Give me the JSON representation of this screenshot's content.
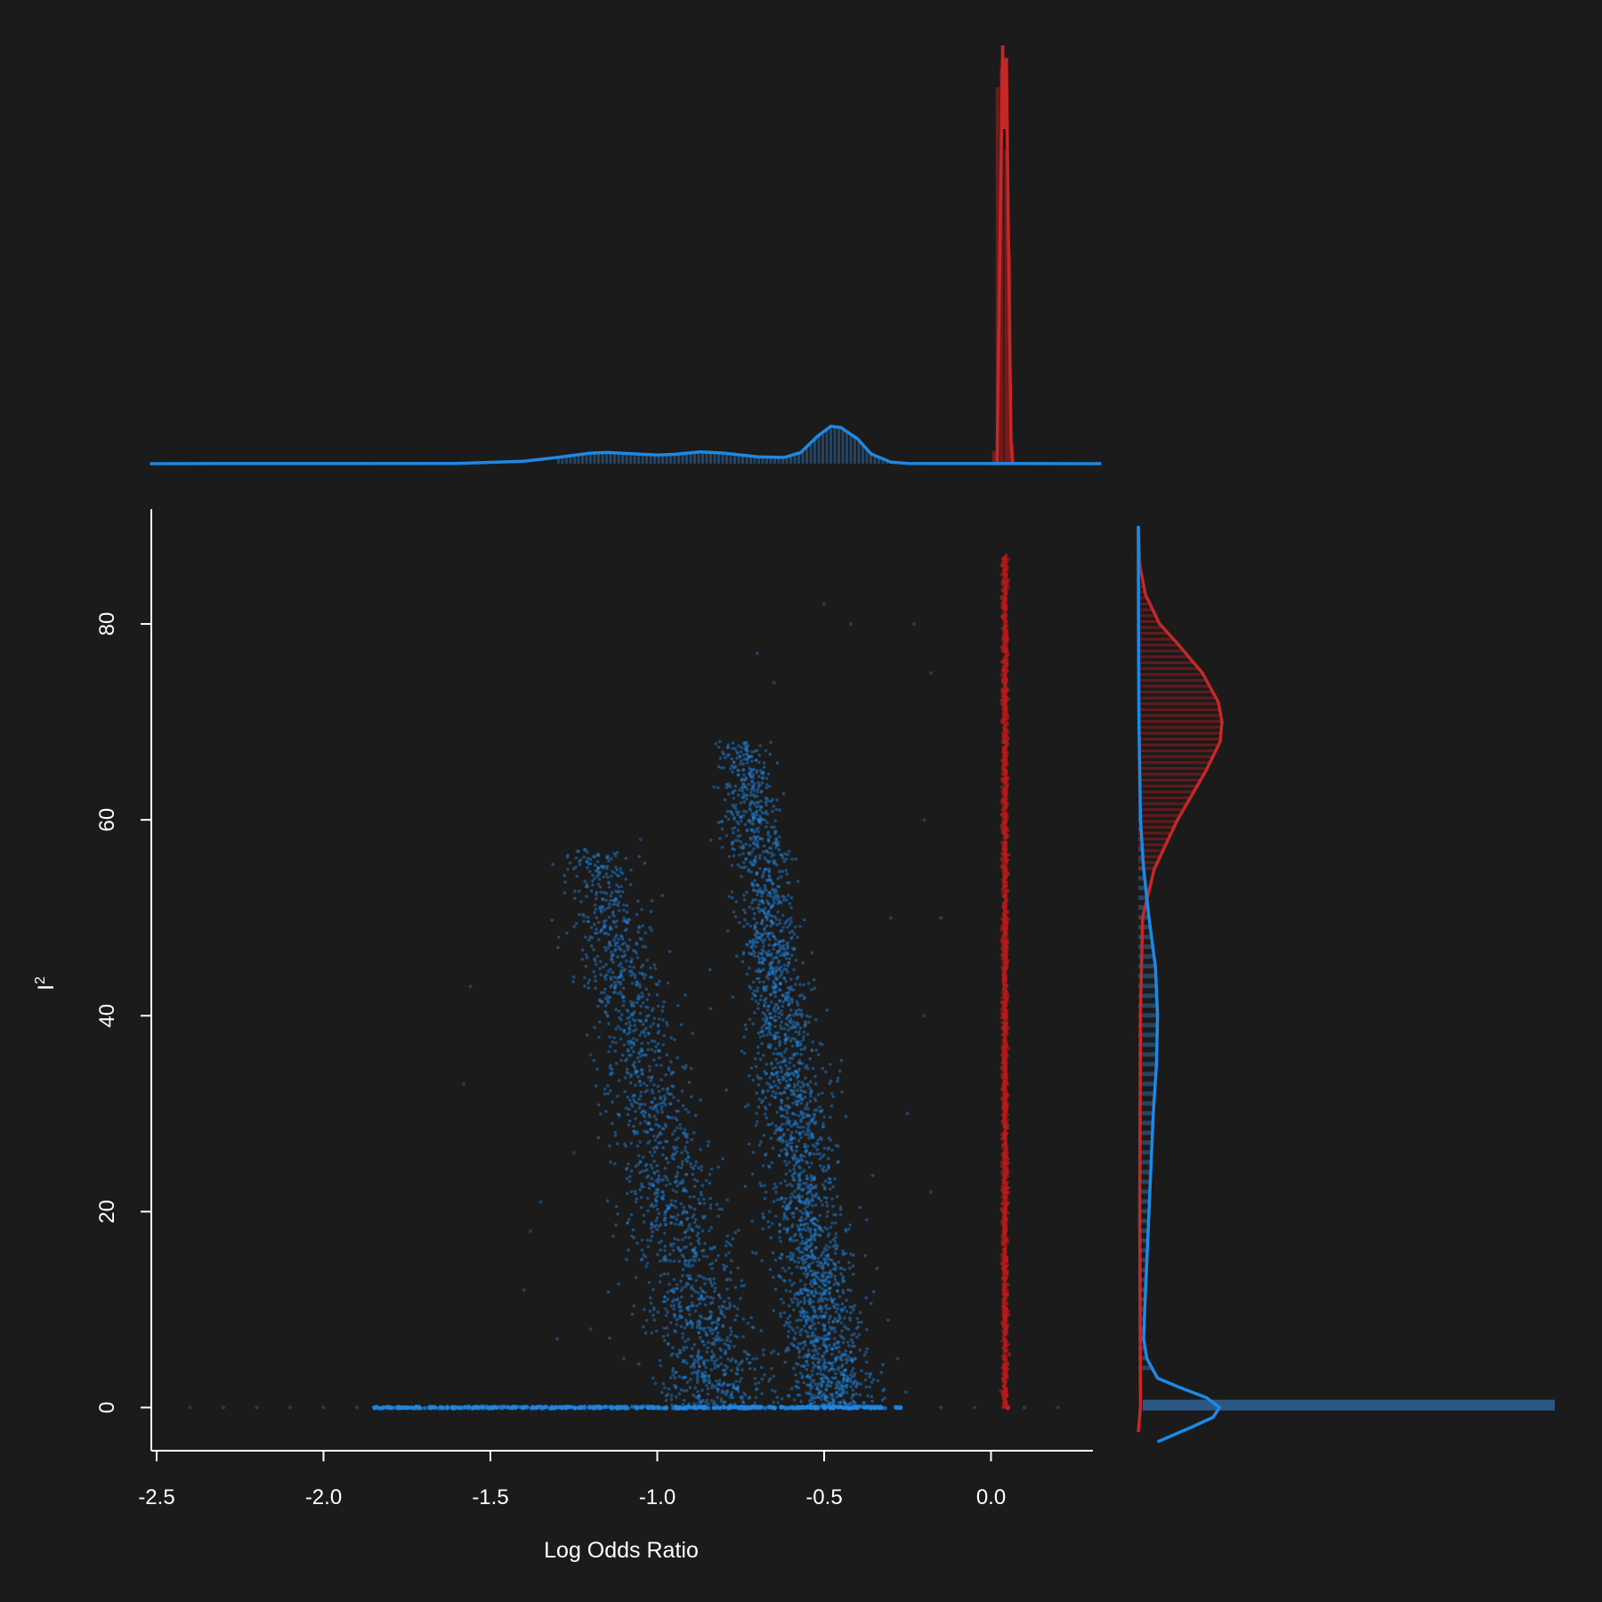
{
  "chart_data": {
    "type": "scatter",
    "title": "",
    "xlabel": "Log Odds Ratio",
    "ylabel": "I",
    "ylabel_superscript": "2",
    "xlim": [
      -2.5,
      0.3
    ],
    "ylim": [
      -3.5,
      91
    ],
    "x_ticks": [
      -2.5,
      -2.0,
      -1.5,
      -1.0,
      -0.5,
      0.0
    ],
    "x_tick_labels": [
      "-2.5",
      "-2.0",
      "-1.5",
      "-1.0",
      "-0.5",
      "0.0"
    ],
    "y_ticks": [
      0,
      20,
      40,
      60,
      80
    ],
    "y_tick_labels": [
      "0",
      "20",
      "40",
      "60",
      "80"
    ],
    "grid": false,
    "colors": {
      "background": "#1b1b1b",
      "axis": "#ffffff",
      "series_blue": "#1e88e5",
      "series_red": "#b71c1c",
      "series_red_line": "#c62828"
    },
    "series": [
      {
        "name": "blue",
        "color": "#1e88e5",
        "clusters": [
          {
            "x_center": -0.47,
            "x_slope": -0.004,
            "x_sd": 0.065,
            "y_min": 0,
            "y_max": 68,
            "count": 2600
          },
          {
            "x_center": -0.82,
            "x_slope": -0.0065,
            "x_sd": 0.085,
            "y_min": 0,
            "y_max": 57,
            "count": 1700
          }
        ],
        "baseline": {
          "y": 0,
          "x_min": -1.85,
          "x_max": -0.27
        },
        "sparse_outliers": [
          {
            "x": -2.4,
            "y": 0
          },
          {
            "x": -2.3,
            "y": 0
          },
          {
            "x": -2.2,
            "y": 0
          },
          {
            "x": -2.1,
            "y": 0
          },
          {
            "x": -2.0,
            "y": 0
          },
          {
            "x": -1.9,
            "y": 0
          },
          {
            "x": -0.15,
            "y": 0
          },
          {
            "x": -0.05,
            "y": 0
          },
          {
            "x": 0.1,
            "y": 0
          },
          {
            "x": 0.2,
            "y": 0
          },
          {
            "x": -1.56,
            "y": 43
          },
          {
            "x": -1.58,
            "y": 33
          },
          {
            "x": -1.35,
            "y": 21
          },
          {
            "x": -1.4,
            "y": 12
          },
          {
            "x": -1.3,
            "y": 7
          },
          {
            "x": -1.38,
            "y": 18
          },
          {
            "x": -0.5,
            "y": 82
          },
          {
            "x": -0.42,
            "y": 80
          },
          {
            "x": -0.23,
            "y": 80
          },
          {
            "x": -0.18,
            "y": 75
          },
          {
            "x": -0.7,
            "y": 77
          },
          {
            "x": -0.65,
            "y": 74
          },
          {
            "x": -0.2,
            "y": 60
          },
          {
            "x": -0.15,
            "y": 50
          },
          {
            "x": -0.2,
            "y": 40
          },
          {
            "x": -0.3,
            "y": 50
          },
          {
            "x": -0.25,
            "y": 30
          },
          {
            "x": -0.18,
            "y": 22
          },
          {
            "x": -1.05,
            "y": 58
          },
          {
            "x": -1.1,
            "y": 50
          },
          {
            "x": -1.15,
            "y": 42
          },
          {
            "x": -1.2,
            "y": 36
          },
          {
            "x": -1.25,
            "y": 26
          },
          {
            "x": -1.1,
            "y": 5
          },
          {
            "x": -1.2,
            "y": 8
          },
          {
            "x": -0.28,
            "y": 5
          }
        ],
        "marginal_x_density": {
          "points": [
            [
              -2.52,
              0
            ],
            [
              -1.6,
              0.002
            ],
            [
              -1.4,
              0.02
            ],
            [
              -1.3,
              0.05
            ],
            [
              -1.2,
              0.085
            ],
            [
              -1.15,
              0.09
            ],
            [
              -1.08,
              0.08
            ],
            [
              -1.0,
              0.07
            ],
            [
              -0.95,
              0.075
            ],
            [
              -0.87,
              0.095
            ],
            [
              -0.8,
              0.085
            ],
            [
              -0.7,
              0.055
            ],
            [
              -0.62,
              0.05
            ],
            [
              -0.57,
              0.09
            ],
            [
              -0.52,
              0.22
            ],
            [
              -0.48,
              0.3
            ],
            [
              -0.45,
              0.29
            ],
            [
              -0.4,
              0.2
            ],
            [
              -0.36,
              0.08
            ],
            [
              -0.3,
              0.012
            ],
            [
              -0.25,
              0.002
            ],
            [
              0.33,
              0
            ]
          ],
          "hist_x_range": [
            -1.3,
            -0.3
          ]
        },
        "marginal_y_density": {
          "points": [
            [
              -3.5,
              0.09
            ],
            [
              -2,
              0.25
            ],
            [
              -1,
              0.35
            ],
            [
              0,
              0.38
            ],
            [
              1,
              0.32
            ],
            [
              2,
              0.2
            ],
            [
              3,
              0.09
            ],
            [
              5,
              0.04
            ],
            [
              7,
              0.025
            ],
            [
              10,
              0.03
            ],
            [
              15,
              0.04
            ],
            [
              20,
              0.05
            ],
            [
              25,
              0.06
            ],
            [
              30,
              0.07
            ],
            [
              35,
              0.085
            ],
            [
              40,
              0.09
            ],
            [
              45,
              0.08
            ],
            [
              50,
              0.05
            ],
            [
              55,
              0.025
            ],
            [
              60,
              0.01
            ],
            [
              70,
              0.003
            ],
            [
              80,
              0.001
            ],
            [
              90,
              0
            ]
          ],
          "hist_y_range": [
            4,
            60
          ],
          "zero_bar_length": 1.0
        }
      },
      {
        "name": "red",
        "color": "#b71c1c",
        "column": {
          "x_center": 0.042,
          "x_sd": 0.004,
          "y_min": 0,
          "y_max": 87,
          "count": 2200
        },
        "marginal_x_density": {
          "points": [
            [
              0.0,
              0
            ],
            [
              0.018,
              0
            ],
            [
              0.028,
              0.6
            ],
            [
              0.035,
              1.0
            ],
            [
              0.04,
              0.8
            ],
            [
              0.046,
              0.97
            ],
            [
              0.052,
              0.55
            ],
            [
              0.06,
              0.05
            ],
            [
              0.065,
              0
            ]
          ],
          "hist_bars": [
            [
              0.003,
              0.03
            ],
            [
              0.014,
              0.9
            ],
            [
              0.026,
              0.95
            ],
            [
              0.04,
              0.75
            ],
            [
              0.05,
              0.5
            ],
            [
              0.058,
              0.05
            ]
          ]
        },
        "marginal_y_density": {
          "points": [
            [
              -2.5,
              0
            ],
            [
              0,
              0.006
            ],
            [
              10,
              0.005
            ],
            [
              20,
              0.004
            ],
            [
              30,
              0.005
            ],
            [
              40,
              0.006
            ],
            [
              50,
              0.012
            ],
            [
              55,
              0.045
            ],
            [
              60,
              0.11
            ],
            [
              65,
              0.19
            ],
            [
              68,
              0.23
            ],
            [
              70,
              0.235
            ],
            [
              72,
              0.225
            ],
            [
              75,
              0.18
            ],
            [
              78,
              0.11
            ],
            [
              80,
              0.06
            ],
            [
              83,
              0.02
            ],
            [
              86,
              0.004
            ],
            [
              90,
              0
            ]
          ],
          "hist_y_range": [
            55,
            84
          ]
        }
      }
    ]
  }
}
